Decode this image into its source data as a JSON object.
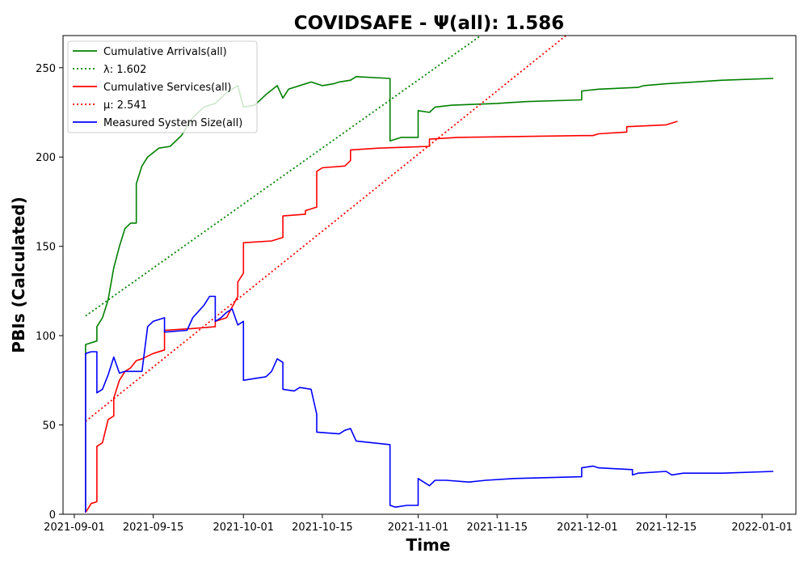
{
  "chart_data": {
    "type": "line",
    "title": "COVIDSAFE -  Ψ(all): 1.586",
    "xlabel": "Time",
    "ylabel": "PBIs (Calculated)",
    "xlim": [
      "2021-08-30",
      "2022-01-07"
    ],
    "ylim": [
      0,
      268
    ],
    "x_ticks": [
      "2021-09-01",
      "2021-09-15",
      "2021-10-01",
      "2021-10-15",
      "2021-11-01",
      "2021-11-15",
      "2021-12-01",
      "2021-12-15",
      "2022-01-01"
    ],
    "y_ticks": [
      0,
      50,
      100,
      150,
      200,
      250
    ],
    "grid": false,
    "legend_position": "upper-left",
    "series": [
      {
        "name": "Cumulative Arrivals(all)",
        "color": "#008000",
        "style": "solid",
        "points": [
          [
            "2021-09-03",
            1
          ],
          [
            "2021-09-03",
            60
          ],
          [
            "2021-09-03",
            95
          ],
          [
            "2021-09-05",
            97
          ],
          [
            "2021-09-05",
            105
          ],
          [
            "2021-09-06",
            110
          ],
          [
            "2021-09-07",
            120
          ],
          [
            "2021-09-08",
            138
          ],
          [
            "2021-09-09",
            150
          ],
          [
            "2021-09-10",
            160
          ],
          [
            "2021-09-11",
            163
          ],
          [
            "2021-09-12",
            163
          ],
          [
            "2021-09-12",
            185
          ],
          [
            "2021-09-13",
            195
          ],
          [
            "2021-09-14",
            200
          ],
          [
            "2021-09-16",
            205
          ],
          [
            "2021-09-18",
            206
          ],
          [
            "2021-09-20",
            212
          ],
          [
            "2021-09-22",
            222
          ],
          [
            "2021-09-24",
            228
          ],
          [
            "2021-09-26",
            230
          ],
          [
            "2021-09-28",
            236
          ],
          [
            "2021-09-30",
            240
          ],
          [
            "2021-10-01",
            228
          ],
          [
            "2021-10-03",
            229
          ],
          [
            "2021-10-05",
            235
          ],
          [
            "2021-10-07",
            240
          ],
          [
            "2021-10-08",
            233
          ],
          [
            "2021-10-09",
            238
          ],
          [
            "2021-10-13",
            242
          ],
          [
            "2021-10-15",
            240
          ],
          [
            "2021-10-17",
            241
          ],
          [
            "2021-10-18",
            242
          ],
          [
            "2021-10-20",
            243
          ],
          [
            "2021-10-21",
            245
          ],
          [
            "2021-10-27",
            244
          ],
          [
            "2021-10-27",
            209
          ],
          [
            "2021-10-28",
            210
          ],
          [
            "2021-10-29",
            211
          ],
          [
            "2021-11-01",
            211
          ],
          [
            "2021-11-01",
            226
          ],
          [
            "2021-11-03",
            225
          ],
          [
            "2021-11-04",
            228
          ],
          [
            "2021-11-07",
            229
          ],
          [
            "2021-11-15",
            230
          ],
          [
            "2021-11-20",
            231
          ],
          [
            "2021-11-30",
            232
          ],
          [
            "2021-11-30",
            237
          ],
          [
            "2021-12-03",
            238
          ],
          [
            "2021-12-10",
            239
          ],
          [
            "2021-12-11",
            240
          ],
          [
            "2021-12-15",
            241
          ],
          [
            "2021-12-20",
            242
          ],
          [
            "2021-12-25",
            243
          ],
          [
            "2022-01-03",
            244
          ]
        ]
      },
      {
        "name": "λ: 1.602",
        "color": "#008000",
        "style": "dotted",
        "points": [
          [
            "2021-09-03",
            111
          ],
          [
            "2021-11-13",
            270
          ]
        ]
      },
      {
        "name": "Cumulative Services(all)",
        "color": "#ff0000",
        "style": "solid",
        "points": [
          [
            "2021-09-03",
            1
          ],
          [
            "2021-09-04",
            6
          ],
          [
            "2021-09-05",
            7
          ],
          [
            "2021-09-05",
            38
          ],
          [
            "2021-09-06",
            40
          ],
          [
            "2021-09-07",
            53
          ],
          [
            "2021-09-08",
            55
          ],
          [
            "2021-09-08",
            65
          ],
          [
            "2021-09-09",
            75
          ],
          [
            "2021-09-10",
            80
          ],
          [
            "2021-09-11",
            82
          ],
          [
            "2021-09-12",
            86
          ],
          [
            "2021-09-13",
            87
          ],
          [
            "2021-09-15",
            90
          ],
          [
            "2021-09-17",
            92
          ],
          [
            "2021-09-17",
            103
          ],
          [
            "2021-09-22",
            104
          ],
          [
            "2021-09-26",
            105
          ],
          [
            "2021-09-26",
            108
          ],
          [
            "2021-09-28",
            110
          ],
          [
            "2021-09-30",
            122
          ],
          [
            "2021-09-30",
            130
          ],
          [
            "2021-10-01",
            135
          ],
          [
            "2021-10-01",
            152
          ],
          [
            "2021-10-06",
            153
          ],
          [
            "2021-10-08",
            155
          ],
          [
            "2021-10-08",
            167
          ],
          [
            "2021-10-12",
            168
          ],
          [
            "2021-10-12",
            170
          ],
          [
            "2021-10-14",
            172
          ],
          [
            "2021-10-14",
            192
          ],
          [
            "2021-10-15",
            194
          ],
          [
            "2021-10-19",
            195
          ],
          [
            "2021-10-20",
            198
          ],
          [
            "2021-10-20",
            204
          ],
          [
            "2021-10-25",
            205
          ],
          [
            "2021-11-03",
            206
          ],
          [
            "2021-11-03",
            210
          ],
          [
            "2021-11-08",
            211
          ],
          [
            "2021-11-30",
            212
          ],
          [
            "2021-12-02",
            212
          ],
          [
            "2021-12-03",
            213
          ],
          [
            "2021-12-08",
            214
          ],
          [
            "2021-12-08",
            217
          ],
          [
            "2021-12-15",
            218
          ],
          [
            "2021-12-17",
            220
          ]
        ]
      },
      {
        "name": "μ: 2.541",
        "color": "#ff0000",
        "style": "dotted",
        "points": [
          [
            "2021-09-03",
            52
          ],
          [
            "2021-11-28",
            270
          ]
        ]
      },
      {
        "name": "Measured System Size(all)",
        "color": "#0000ff",
        "style": "solid",
        "points": [
          [
            "2021-09-03",
            1
          ],
          [
            "2021-09-03",
            90
          ],
          [
            "2021-09-04",
            91
          ],
          [
            "2021-09-05",
            91
          ],
          [
            "2021-09-05",
            68
          ],
          [
            "2021-09-06",
            70
          ],
          [
            "2021-09-07",
            78
          ],
          [
            "2021-09-08",
            88
          ],
          [
            "2021-09-09",
            79
          ],
          [
            "2021-09-10",
            80
          ],
          [
            "2021-09-12",
            80
          ],
          [
            "2021-09-13",
            80
          ],
          [
            "2021-09-14",
            105
          ],
          [
            "2021-09-15",
            108
          ],
          [
            "2021-09-17",
            110
          ],
          [
            "2021-09-17",
            102
          ],
          [
            "2021-09-21",
            103
          ],
          [
            "2021-09-22",
            110
          ],
          [
            "2021-09-24",
            117
          ],
          [
            "2021-09-25",
            122
          ],
          [
            "2021-09-26",
            122
          ],
          [
            "2021-09-26",
            108
          ],
          [
            "2021-09-27",
            110
          ],
          [
            "2021-09-28",
            113
          ],
          [
            "2021-09-29",
            115
          ],
          [
            "2021-09-30",
            106
          ],
          [
            "2021-10-01",
            108
          ],
          [
            "2021-10-01",
            75
          ],
          [
            "2021-10-05",
            77
          ],
          [
            "2021-10-06",
            80
          ],
          [
            "2021-10-07",
            87
          ],
          [
            "2021-10-08",
            85
          ],
          [
            "2021-10-08",
            70
          ],
          [
            "2021-10-10",
            69
          ],
          [
            "2021-10-11",
            71
          ],
          [
            "2021-10-13",
            70
          ],
          [
            "2021-10-14",
            56
          ],
          [
            "2021-10-14",
            46
          ],
          [
            "2021-10-18",
            45
          ],
          [
            "2021-10-19",
            47
          ],
          [
            "2021-10-20",
            48
          ],
          [
            "2021-10-21",
            41
          ],
          [
            "2021-10-27",
            39
          ],
          [
            "2021-10-27",
            5
          ],
          [
            "2021-10-28",
            4
          ],
          [
            "2021-10-30",
            5
          ],
          [
            "2021-11-01",
            5
          ],
          [
            "2021-11-01",
            20
          ],
          [
            "2021-11-03",
            16
          ],
          [
            "2021-11-04",
            19
          ],
          [
            "2021-11-06",
            19
          ],
          [
            "2021-11-10",
            18
          ],
          [
            "2021-11-13",
            19
          ],
          [
            "2021-11-18",
            20
          ],
          [
            "2021-11-30",
            21
          ],
          [
            "2021-11-30",
            26
          ],
          [
            "2021-12-02",
            27
          ],
          [
            "2021-12-03",
            26
          ],
          [
            "2021-12-09",
            25
          ],
          [
            "2021-12-09",
            22
          ],
          [
            "2021-12-10",
            23
          ],
          [
            "2021-12-15",
            24
          ],
          [
            "2021-12-16",
            22
          ],
          [
            "2021-12-18",
            23
          ],
          [
            "2021-12-25",
            23
          ],
          [
            "2022-01-03",
            24
          ]
        ]
      }
    ]
  }
}
